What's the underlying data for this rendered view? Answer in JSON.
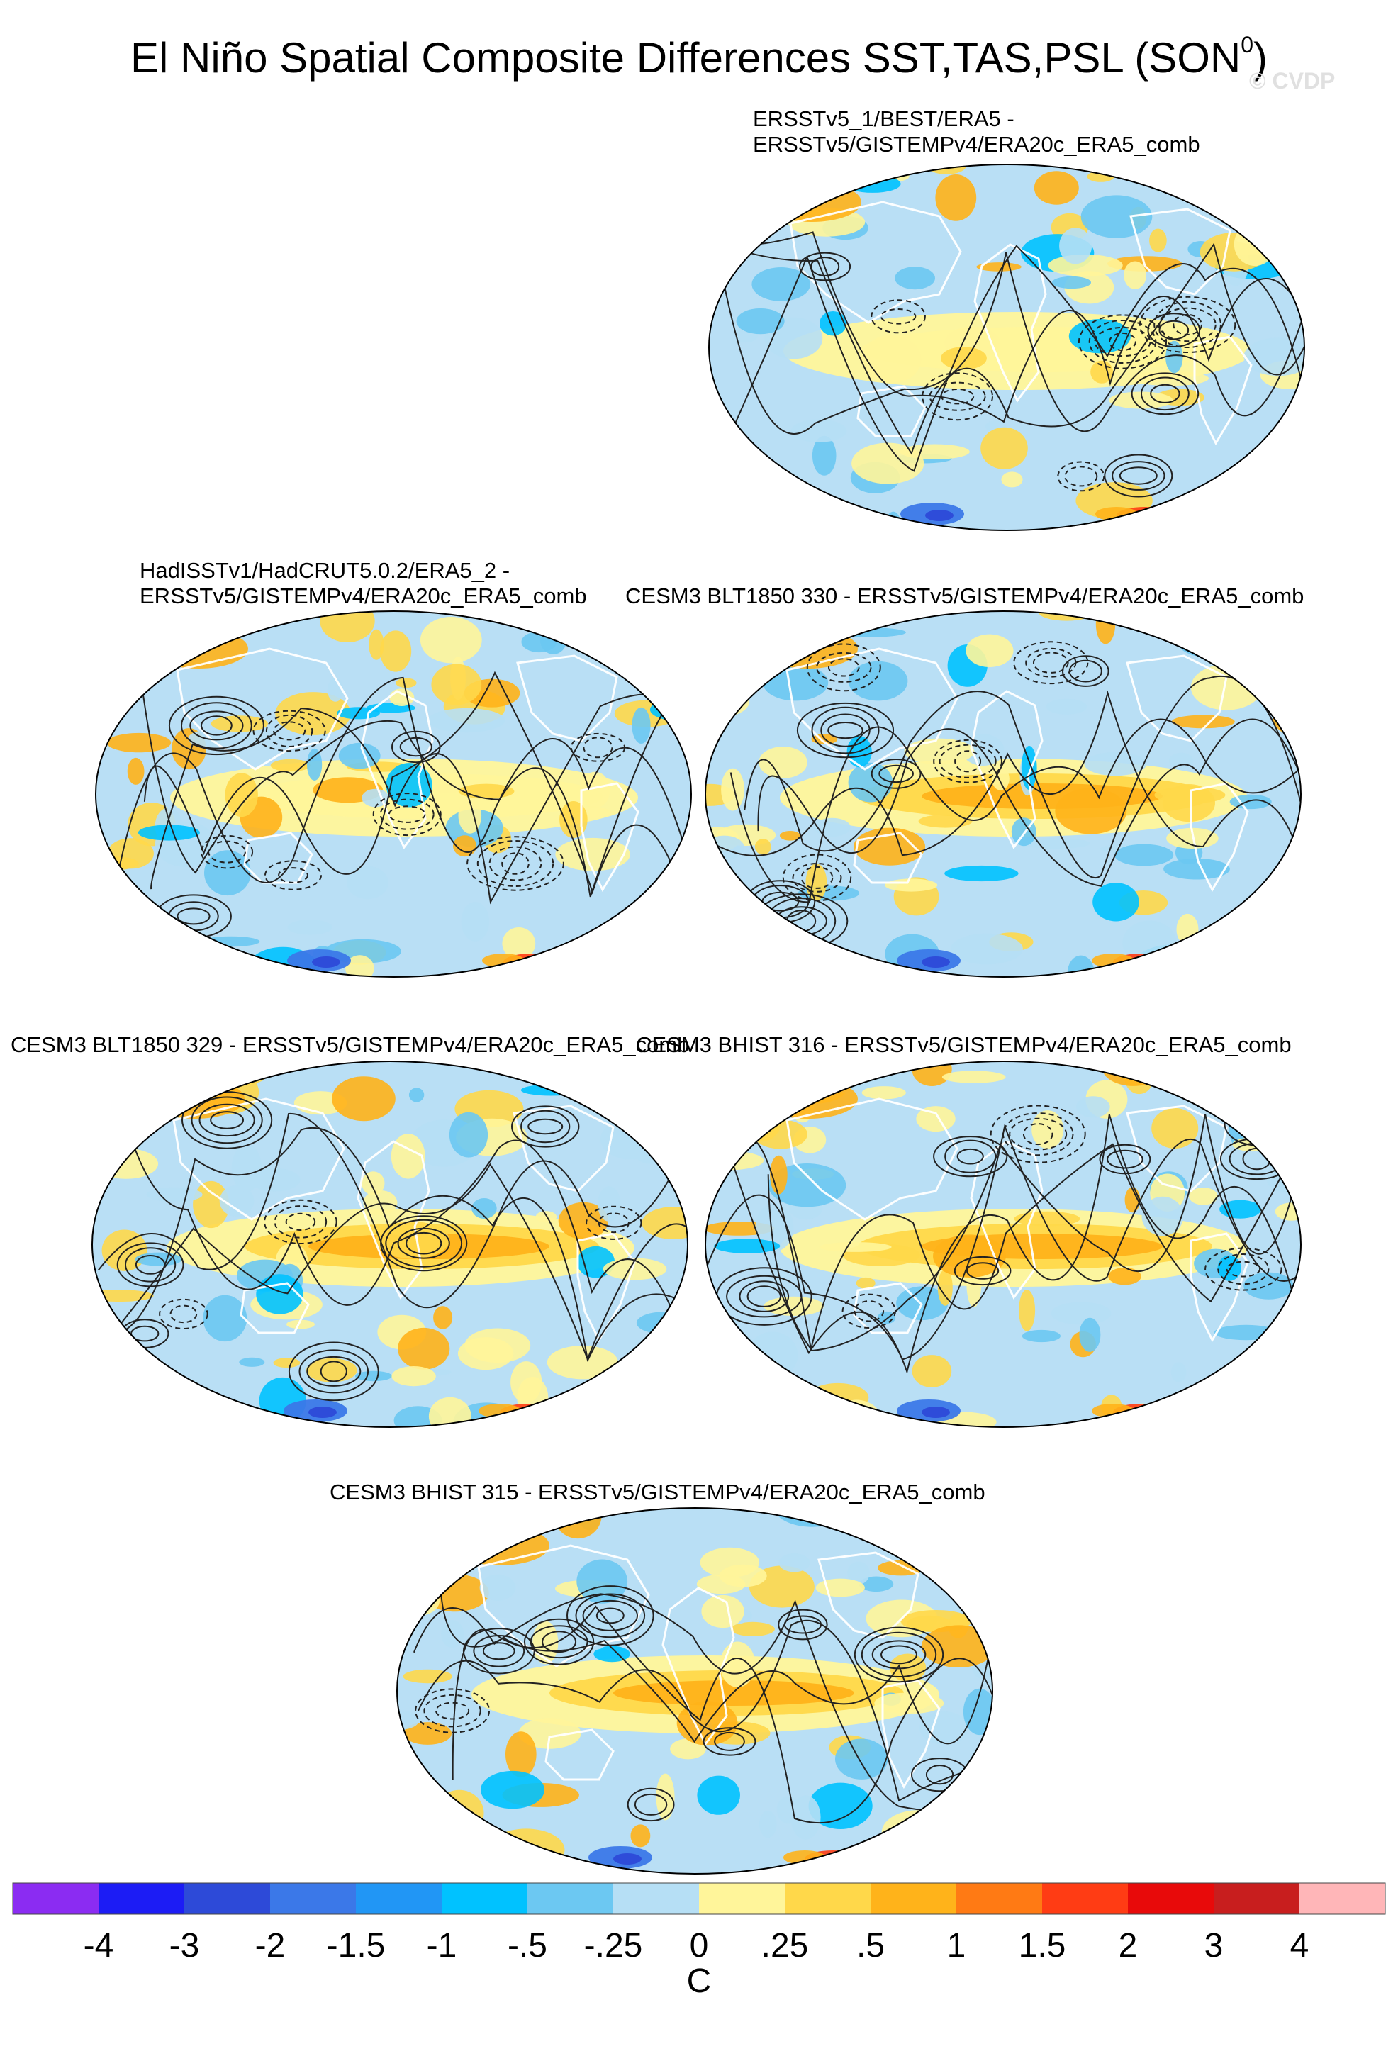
{
  "figure": {
    "title_main": "El Niño Spatial Composite Differences SST,TAS,PSL (SON",
    "title_sup": "0",
    "title_close": ")",
    "watermark": "© CVDP"
  },
  "panels": [
    {
      "line1": "ERSSTv5_1/BEST/ERA5 -",
      "line2": "ERSSTv5/GISTEMPv4/ERA20c_ERA5_comb"
    },
    {
      "line1": "HadISSTv1/HadCRUT5.0.2/ERA5_2 -",
      "line2": "ERSSTv5/GISTEMPv4/ERA20c_ERA5_comb"
    },
    {
      "line1": "CESM3 BLT1850 330 - ERSSTv5/GISTEMPv4/ERA20c_ERA5_comb",
      "line2": ""
    },
    {
      "line1": "CESM3 BLT1850 329 - ERSSTv5/GISTEMPv4/ERA20c_ERA5_comb",
      "line2": ""
    },
    {
      "line1": "CESM3 BHIST 316 - ERSSTv5/GISTEMPv4/ERA20c_ERA5_comb",
      "line2": ""
    },
    {
      "line1": "CESM3 BHIST 315 - ERSSTv5/GISTEMPv4/ERA20c_ERA5_comb",
      "line2": ""
    }
  ],
  "colorbar": {
    "colors": [
      "#8b2cf2",
      "#1c1cf5",
      "#2d4ad8",
      "#3b78e8",
      "#2196f5",
      "#00c2ff",
      "#6cc8f2",
      "#b6dff5",
      "#fff59a",
      "#ffd84a",
      "#ffb31a",
      "#ff7a14",
      "#ff3c14",
      "#e80a0a",
      "#c81e1e",
      "#ffb6b8"
    ],
    "tick_labels": [
      "-4",
      "-3",
      "-2",
      "-1.5",
      "-1",
      "-.5",
      "-.25",
      "0",
      ".25",
      ".5",
      "1",
      "1.5",
      "2",
      "3",
      "4"
    ],
    "units": "C"
  },
  "map_fill": {
    "ocean_base": "#b9dff5",
    "land_outline": "#ffffff",
    "contour_color": "#222222"
  }
}
